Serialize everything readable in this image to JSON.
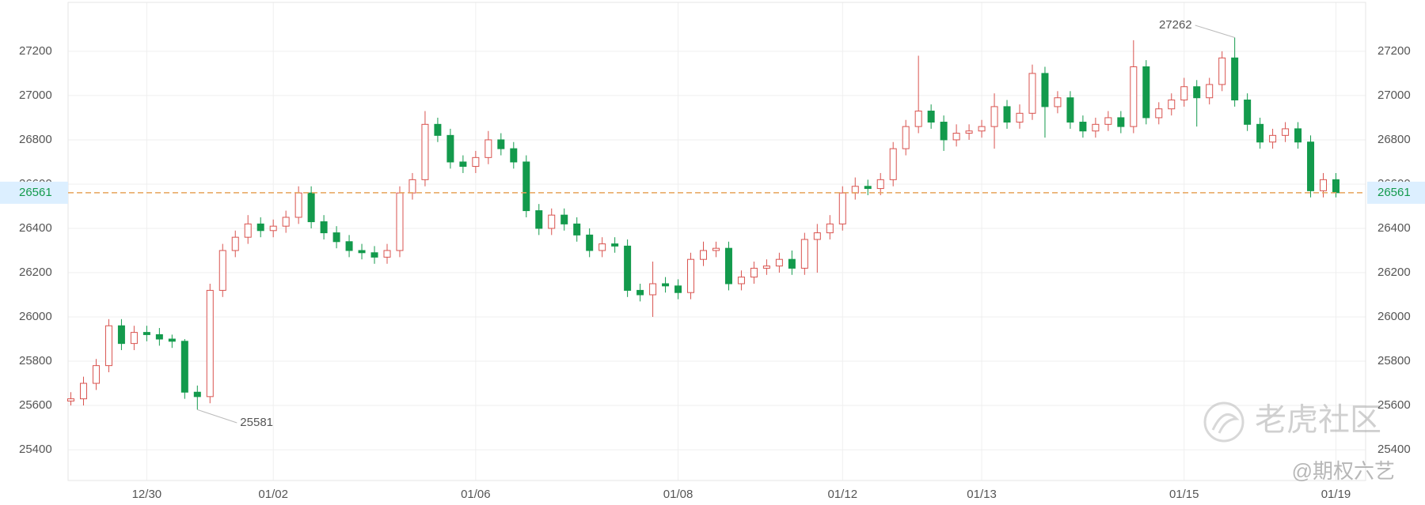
{
  "chart_data": {
    "type": "candlestick",
    "categories": [
      null,
      null,
      null,
      null,
      null,
      null,
      "12/30",
      null,
      null,
      null,
      null,
      null,
      null,
      null,
      null,
      null,
      "01/02",
      null,
      null,
      null,
      null,
      null,
      null,
      null,
      null,
      null,
      null,
      null,
      null,
      null,
      null,
      null,
      "01/06",
      null,
      null,
      null,
      null,
      null,
      null,
      null,
      null,
      null,
      null,
      null,
      null,
      null,
      null,
      null,
      "01/08",
      null,
      null,
      null,
      null,
      null,
      null,
      null,
      null,
      null,
      null,
      null,
      null,
      "01/12",
      null,
      null,
      null,
      null,
      null,
      null,
      null,
      null,
      null,
      null,
      "01/13",
      null,
      null,
      null,
      null,
      null,
      null,
      null,
      null,
      null,
      null,
      null,
      null,
      null,
      null,
      null,
      "01/15",
      null,
      null,
      null,
      null,
      null,
      null,
      null,
      null,
      null,
      null,
      null,
      "01/19"
    ],
    "open": [
      25620,
      25630,
      25700,
      25780,
      25960,
      25880,
      25930,
      25920,
      25900,
      25890,
      25660,
      25640,
      26120,
      26300,
      26360,
      26420,
      26390,
      26410,
      26450,
      26560,
      26430,
      26380,
      26340,
      26300,
      26290,
      26270,
      26300,
      26560,
      26620,
      26870,
      26820,
      26700,
      26680,
      26720,
      26800,
      26760,
      26700,
      26480,
      26400,
      26460,
      26420,
      26370,
      26300,
      26330,
      26320,
      26120,
      26100,
      26150,
      26140,
      26110,
      26260,
      26300,
      26310,
      26150,
      26180,
      26220,
      26230,
      26260,
      26220,
      26350,
      26380,
      26420,
      26560,
      26590,
      26580,
      26620,
      26760,
      26860,
      26930,
      26880,
      26800,
      26830,
      26840,
      26860,
      26950,
      26880,
      26920,
      27100,
      26950,
      26990,
      26880,
      26840,
      26870,
      26900,
      26860,
      27130,
      26900,
      26940,
      26980,
      27040,
      26990,
      27050,
      27170,
      26980,
      26870,
      26790,
      26820,
      26850,
      26790,
      26570,
      26620
    ],
    "high": [
      25660,
      25730,
      25810,
      25990,
      25990,
      25960,
      25960,
      25950,
      25920,
      25900,
      25690,
      26150,
      26330,
      26390,
      26460,
      26450,
      26440,
      26480,
      26590,
      26590,
      26460,
      26410,
      26370,
      26330,
      26320,
      26330,
      26590,
      26650,
      26930,
      26900,
      26850,
      26730,
      26750,
      26840,
      26830,
      26790,
      26730,
      26510,
      26490,
      26490,
      26450,
      26400,
      26360,
      26360,
      26350,
      26150,
      26250,
      26180,
      26170,
      26290,
      26340,
      26340,
      26340,
      26210,
      26250,
      26260,
      26290,
      26300,
      26380,
      26420,
      26460,
      26590,
      26630,
      26620,
      26650,
      26790,
      26890,
      27180,
      26960,
      26910,
      26870,
      26870,
      26890,
      27010,
      26980,
      26960,
      27140,
      27130,
      27020,
      27020,
      26910,
      26900,
      26930,
      26930,
      27250,
      27160,
      26970,
      27010,
      27080,
      27070,
      27080,
      27200,
      27262,
      27010,
      26900,
      26850,
      26880,
      26880,
      26820,
      26650,
      26650
    ],
    "low": [
      25600,
      25600,
      25670,
      25750,
      25850,
      25850,
      25890,
      25870,
      25860,
      25630,
      25581,
      25610,
      26090,
      26270,
      26330,
      26360,
      26360,
      26380,
      26420,
      26400,
      26350,
      26310,
      26270,
      26260,
      26240,
      26240,
      26270,
      26530,
      26590,
      26790,
      26670,
      26650,
      26650,
      26690,
      26730,
      26670,
      26450,
      26370,
      26370,
      26390,
      26340,
      26270,
      26270,
      26290,
      26090,
      26070,
      26000,
      26110,
      26080,
      26080,
      26230,
      26270,
      26120,
      26120,
      26150,
      26190,
      26200,
      26190,
      26190,
      26200,
      26350,
      26390,
      26530,
      26550,
      26550,
      26590,
      26730,
      26830,
      26850,
      26750,
      26770,
      26800,
      26810,
      26760,
      26850,
      26850,
      26890,
      26810,
      26920,
      26850,
      26810,
      26810,
      26840,
      26830,
      26830,
      26870,
      26870,
      26910,
      26950,
      26860,
      26960,
      27020,
      26950,
      26840,
      26760,
      26760,
      26790,
      26760,
      26540,
      26540,
      26540
    ],
    "close": [
      25630,
      25700,
      25780,
      25960,
      25880,
      25930,
      25920,
      25900,
      25890,
      25660,
      25640,
      26120,
      26300,
      26360,
      26420,
      26390,
      26410,
      26450,
      26560,
      26430,
      26380,
      26340,
      26300,
      26290,
      26270,
      26300,
      26560,
      26620,
      26870,
      26820,
      26700,
      26680,
      26720,
      26800,
      26760,
      26700,
      26480,
      26400,
      26460,
      26420,
      26370,
      26300,
      26330,
      26320,
      26120,
      26100,
      26150,
      26140,
      26110,
      26260,
      26300,
      26310,
      26150,
      26180,
      26220,
      26230,
      26260,
      26220,
      26350,
      26380,
      26420,
      26560,
      26590,
      26580,
      26620,
      26760,
      26860,
      26930,
      26880,
      26800,
      26830,
      26840,
      26860,
      26950,
      26880,
      26920,
      27100,
      26950,
      26990,
      26880,
      26840,
      26870,
      26900,
      26860,
      27130,
      26900,
      26940,
      26980,
      27040,
      26990,
      27050,
      27170,
      26980,
      26870,
      26790,
      26820,
      26850,
      26790,
      26570,
      26620,
      26561
    ],
    "up_color": "#d9534f",
    "down_color": "#139a4c",
    "ylim": [
      25261,
      27421
    ],
    "yticks": [
      25400,
      25600,
      25800,
      26000,
      26200,
      26400,
      26600,
      26800,
      27000,
      27200
    ],
    "grid": true,
    "max_label": 27262,
    "min_label": 25581,
    "last_price": 26561,
    "watermark": "老虎社区",
    "watermark_author": "@期权六艺"
  }
}
